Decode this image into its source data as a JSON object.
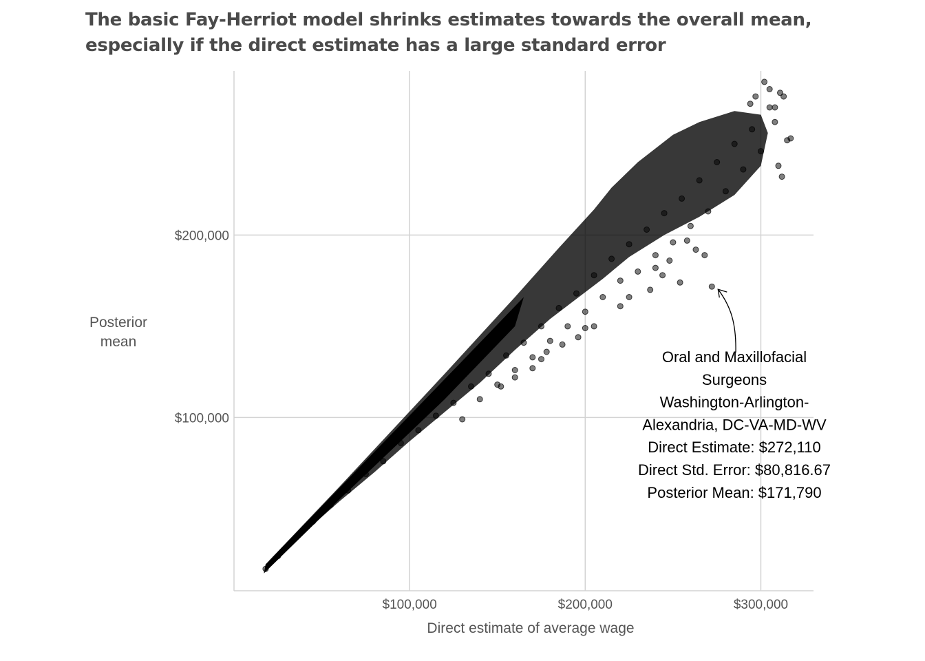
{
  "title": {
    "line1": "The basic Fay-Herriot model shrinks estimates towards the overall mean,",
    "line2": "especially if the direct estimate has a large standard error"
  },
  "chart_data": {
    "type": "scatter",
    "xlabel": "Direct estimate of average wage",
    "ylabel_lines": [
      "Posterior",
      "mean"
    ],
    "xlim": [
      0,
      330000
    ],
    "ylim": [
      5000,
      290000
    ],
    "x_ticks": [
      {
        "value": 100000,
        "label": "$100,000"
      },
      {
        "value": 200000,
        "label": "$200,000"
      },
      {
        "value": 300000,
        "label": "$300,000"
      }
    ],
    "y_ticks": [
      {
        "value": 100000,
        "label": "$100,000"
      },
      {
        "value": 200000,
        "label": "$200,000"
      }
    ],
    "grid": true,
    "point_color": "#000000",
    "point_opacity": 0.5,
    "band_description": "Dense cloud of points from about ($17,000, $17,000) to ($315,000, $275,000); points fall on or below the diagonal, spreading further below as the direct estimate grows",
    "points": [
      [
        18000,
        17000
      ],
      [
        25000,
        24000
      ],
      [
        35000,
        34000
      ],
      [
        45000,
        43000
      ],
      [
        55000,
        52000
      ],
      [
        65000,
        60000
      ],
      [
        75000,
        69000
      ],
      [
        85000,
        76000
      ],
      [
        95000,
        86000
      ],
      [
        105000,
        93000
      ],
      [
        115000,
        101000
      ],
      [
        125000,
        108000
      ],
      [
        130000,
        99000
      ],
      [
        135000,
        117000
      ],
      [
        140000,
        110000
      ],
      [
        145000,
        124000
      ],
      [
        150000,
        118000
      ],
      [
        155000,
        134000
      ],
      [
        160000,
        126000
      ],
      [
        165000,
        141000
      ],
      [
        170000,
        133000
      ],
      [
        175000,
        150000
      ],
      [
        180000,
        142000
      ],
      [
        185000,
        160000
      ],
      [
        190000,
        150000
      ],
      [
        195000,
        168000
      ],
      [
        200000,
        158000
      ],
      [
        205000,
        178000
      ],
      [
        210000,
        166000
      ],
      [
        215000,
        187000
      ],
      [
        220000,
        175000
      ],
      [
        225000,
        195000
      ],
      [
        230000,
        180000
      ],
      [
        235000,
        203000
      ],
      [
        240000,
        189000
      ],
      [
        245000,
        212000
      ],
      [
        250000,
        196000
      ],
      [
        255000,
        220000
      ],
      [
        260000,
        205000
      ],
      [
        265000,
        230000
      ],
      [
        270000,
        213000
      ],
      [
        275000,
        240000
      ],
      [
        280000,
        224000
      ],
      [
        285000,
        250000
      ],
      [
        290000,
        236000
      ],
      [
        295000,
        258000
      ],
      [
        300000,
        246000
      ],
      [
        305000,
        270000
      ],
      [
        310000,
        238000
      ],
      [
        315000,
        252000
      ],
      [
        302000,
        284000
      ],
      [
        311000,
        278000
      ],
      [
        313000,
        276000
      ],
      [
        308000,
        262000
      ],
      [
        312000,
        232000
      ],
      [
        317000,
        253000
      ],
      [
        308000,
        270000
      ],
      [
        294000,
        272000
      ],
      [
        297000,
        276000
      ],
      [
        305000,
        280000
      ],
      [
        254000,
        174000
      ],
      [
        272110,
        171790
      ],
      [
        268000,
        189000
      ],
      [
        263000,
        192000
      ],
      [
        258000,
        197000
      ],
      [
        244000,
        178000
      ],
      [
        240000,
        182000
      ],
      [
        237000,
        170000
      ],
      [
        248000,
        186000
      ],
      [
        225000,
        166000
      ],
      [
        220000,
        161000
      ],
      [
        205000,
        150000
      ],
      [
        196000,
        144000
      ],
      [
        200000,
        149000
      ],
      [
        187000,
        140000
      ],
      [
        178000,
        136000
      ],
      [
        175000,
        132000
      ],
      [
        170000,
        127000
      ],
      [
        160000,
        122000
      ],
      [
        152000,
        117000
      ]
    ]
  },
  "annotation": {
    "lines": [
      "Oral and Maxillofacial",
      "Surgeons",
      "Washington-Arlington-",
      "Alexandria, DC-VA-MD-WV",
      "Direct Estimate: $272,110",
      "Direct Std. Error: $80,816.67",
      "Posterior Mean: $171,790"
    ],
    "target_x": 272110,
    "target_y": 171790
  }
}
